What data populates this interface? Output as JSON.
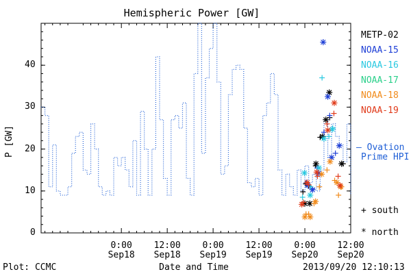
{
  "chart_data": {
    "type": "scatter",
    "title": "Hemispheric Power [GW]",
    "ylabel": "P [GW]",
    "xlabel": "Date and Time",
    "ylim": [
      0,
      50
    ],
    "xlim_hours": [
      -21,
      60
    ],
    "yticks": [
      "0",
      "10",
      "20",
      "30",
      "40"
    ],
    "xticks": [
      {
        "top": "0:00",
        "bottom": "Sep18"
      },
      {
        "top": "12:00",
        "bottom": "Sep18"
      },
      {
        "top": "0:00",
        "bottom": "Sep19"
      },
      {
        "top": "12:00",
        "bottom": "Sep19"
      },
      {
        "top": "0:00",
        "bottom": "Sep20"
      },
      {
        "top": "12:00",
        "bottom": "Sep20"
      }
    ],
    "hpi": {
      "label_line1": "Ovation",
      "label_line2": "Prime HPI",
      "dash": "–",
      "color": "#1f5fd6",
      "steps": [
        [
          -21,
          30
        ],
        [
          -20,
          28
        ],
        [
          -19,
          11
        ],
        [
          -18,
          21
        ],
        [
          -17,
          10
        ],
        [
          -16,
          9
        ],
        [
          -14,
          11
        ],
        [
          -13,
          19
        ],
        [
          -12,
          23
        ],
        [
          -11,
          24
        ],
        [
          -10,
          15
        ],
        [
          -9,
          14
        ],
        [
          -8,
          26
        ],
        [
          -7,
          20
        ],
        [
          -6,
          11
        ],
        [
          -5,
          9
        ],
        [
          -4,
          10
        ],
        [
          -3,
          9
        ],
        [
          -2,
          18
        ],
        [
          -1,
          16
        ],
        [
          0,
          18
        ],
        [
          1,
          15
        ],
        [
          2,
          11
        ],
        [
          3,
          22
        ],
        [
          4,
          9
        ],
        [
          5,
          29
        ],
        [
          6,
          20
        ],
        [
          7,
          9
        ],
        [
          8,
          20
        ],
        [
          9,
          42
        ],
        [
          10,
          27
        ],
        [
          11,
          13
        ],
        [
          12,
          9
        ],
        [
          13,
          27
        ],
        [
          14,
          28
        ],
        [
          15,
          25
        ],
        [
          16,
          31
        ],
        [
          17,
          13
        ],
        [
          18,
          9
        ],
        [
          19,
          38
        ],
        [
          20,
          50
        ],
        [
          21,
          19
        ],
        [
          22,
          37
        ],
        [
          23,
          44
        ],
        [
          24,
          50
        ],
        [
          25,
          36
        ],
        [
          26,
          14
        ],
        [
          27,
          16
        ],
        [
          28,
          33
        ],
        [
          29,
          39
        ],
        [
          30,
          40
        ],
        [
          31,
          39
        ],
        [
          32,
          25
        ],
        [
          33,
          12
        ],
        [
          34,
          11
        ],
        [
          35,
          13
        ],
        [
          36,
          9
        ],
        [
          37,
          28
        ],
        [
          38,
          31
        ],
        [
          39,
          38
        ],
        [
          40,
          33
        ],
        [
          41,
          15
        ],
        [
          42,
          9
        ],
        [
          43,
          14
        ],
        [
          44,
          11
        ],
        [
          45,
          9
        ],
        [
          46,
          15
        ],
        [
          47,
          10
        ],
        [
          48,
          16
        ],
        [
          49,
          12
        ],
        [
          50,
          14
        ],
        [
          51,
          10
        ],
        [
          52,
          15
        ],
        [
          53,
          27
        ],
        [
          54,
          18
        ],
        [
          55,
          26
        ],
        [
          56,
          23
        ],
        [
          57,
          21
        ],
        [
          58,
          17
        ],
        [
          59,
          26
        ],
        [
          60,
          9
        ]
      ]
    },
    "series": [
      {
        "name": "METP-02",
        "color": "#000000",
        "south": [
          [
            47.5,
            9.8
          ],
          [
            48.2,
            11.7
          ],
          [
            49.0,
            11.2
          ],
          [
            50.8,
            16.0
          ],
          [
            52.0,
            22.8
          ],
          [
            54.5,
            27.5
          ],
          [
            58.0,
            16.5
          ]
        ],
        "north": [
          [
            48.0,
            7.0
          ],
          [
            49.3,
            7.0
          ],
          [
            50.9,
            16.5
          ],
          [
            52.6,
            23.0
          ],
          [
            53.5,
            27.0
          ],
          [
            54.4,
            33.5
          ],
          [
            57.6,
            16.5
          ]
        ]
      },
      {
        "name": "NOAA-15",
        "color": "#1e3fd6",
        "south": [
          [
            48.4,
            12.0
          ],
          [
            49.9,
            10.5
          ],
          [
            51.2,
            15.5
          ],
          [
            53.0,
            24.0
          ],
          [
            54.5,
            28.0
          ],
          [
            56.0,
            19.0
          ]
        ],
        "north": [
          [
            48.8,
            11.3
          ],
          [
            50.0,
            10.3
          ],
          [
            51.6,
            14.2
          ],
          [
            52.8,
            45.5
          ],
          [
            54.0,
            32.5
          ],
          [
            55.0,
            18.0
          ],
          [
            57.0,
            20.8
          ]
        ]
      },
      {
        "name": "NOAA-16",
        "color": "#28c8e0",
        "south": [
          [
            47.4,
            8.5
          ],
          [
            49.5,
            11.0
          ],
          [
            52.5,
            37.0
          ],
          [
            54.3,
            23.0
          ],
          [
            55.3,
            25.0
          ]
        ],
        "north": [
          [
            47.9,
            14.3
          ],
          [
            49.4,
            9.0
          ],
          [
            51.7,
            15.5
          ],
          [
            53.0,
            22.5
          ],
          [
            55.2,
            24.7
          ]
        ]
      },
      {
        "name": "NOAA-17",
        "color": "#2ad08a",
        "south": [],
        "north": []
      },
      {
        "name": "NOAA-18",
        "color": "#f08a1a",
        "south": [
          [
            48.3,
            4.5
          ],
          [
            49.0,
            4.5
          ],
          [
            50.4,
            7.0
          ],
          [
            51.8,
            11.0
          ],
          [
            53.8,
            15.0
          ],
          [
            55.8,
            12.5
          ],
          [
            56.8,
            9.0
          ],
          [
            57.6,
            11.0
          ]
        ],
        "north": [
          [
            48.0,
            3.8
          ],
          [
            49.4,
            3.8
          ],
          [
            50.8,
            7.5
          ],
          [
            52.4,
            14.0
          ],
          [
            54.6,
            17.0
          ],
          [
            56.4,
            12.0
          ],
          [
            57.4,
            11.0
          ]
        ]
      },
      {
        "name": "NOAA-19",
        "color": "#e03a1a",
        "south": [
          [
            47.6,
            7.3
          ],
          [
            49.0,
            11.5
          ],
          [
            51.3,
            13.5
          ],
          [
            53.8,
            26.0
          ],
          [
            55.6,
            28.5
          ],
          [
            56.7,
            13.5
          ]
        ],
        "north": [
          [
            47.2,
            6.8
          ],
          [
            48.6,
            12.0
          ],
          [
            51.1,
            14.5
          ],
          [
            54.0,
            24.5
          ],
          [
            55.7,
            31.0
          ],
          [
            57.2,
            11.3
          ]
        ]
      }
    ],
    "marker_legend": {
      "south_symbol": "+",
      "south_label": "south",
      "north_symbol": "*",
      "north_label": "north"
    }
  },
  "footer": {
    "left": "Plot: CCMC",
    "right": "2013/09/20 12:10:13"
  }
}
